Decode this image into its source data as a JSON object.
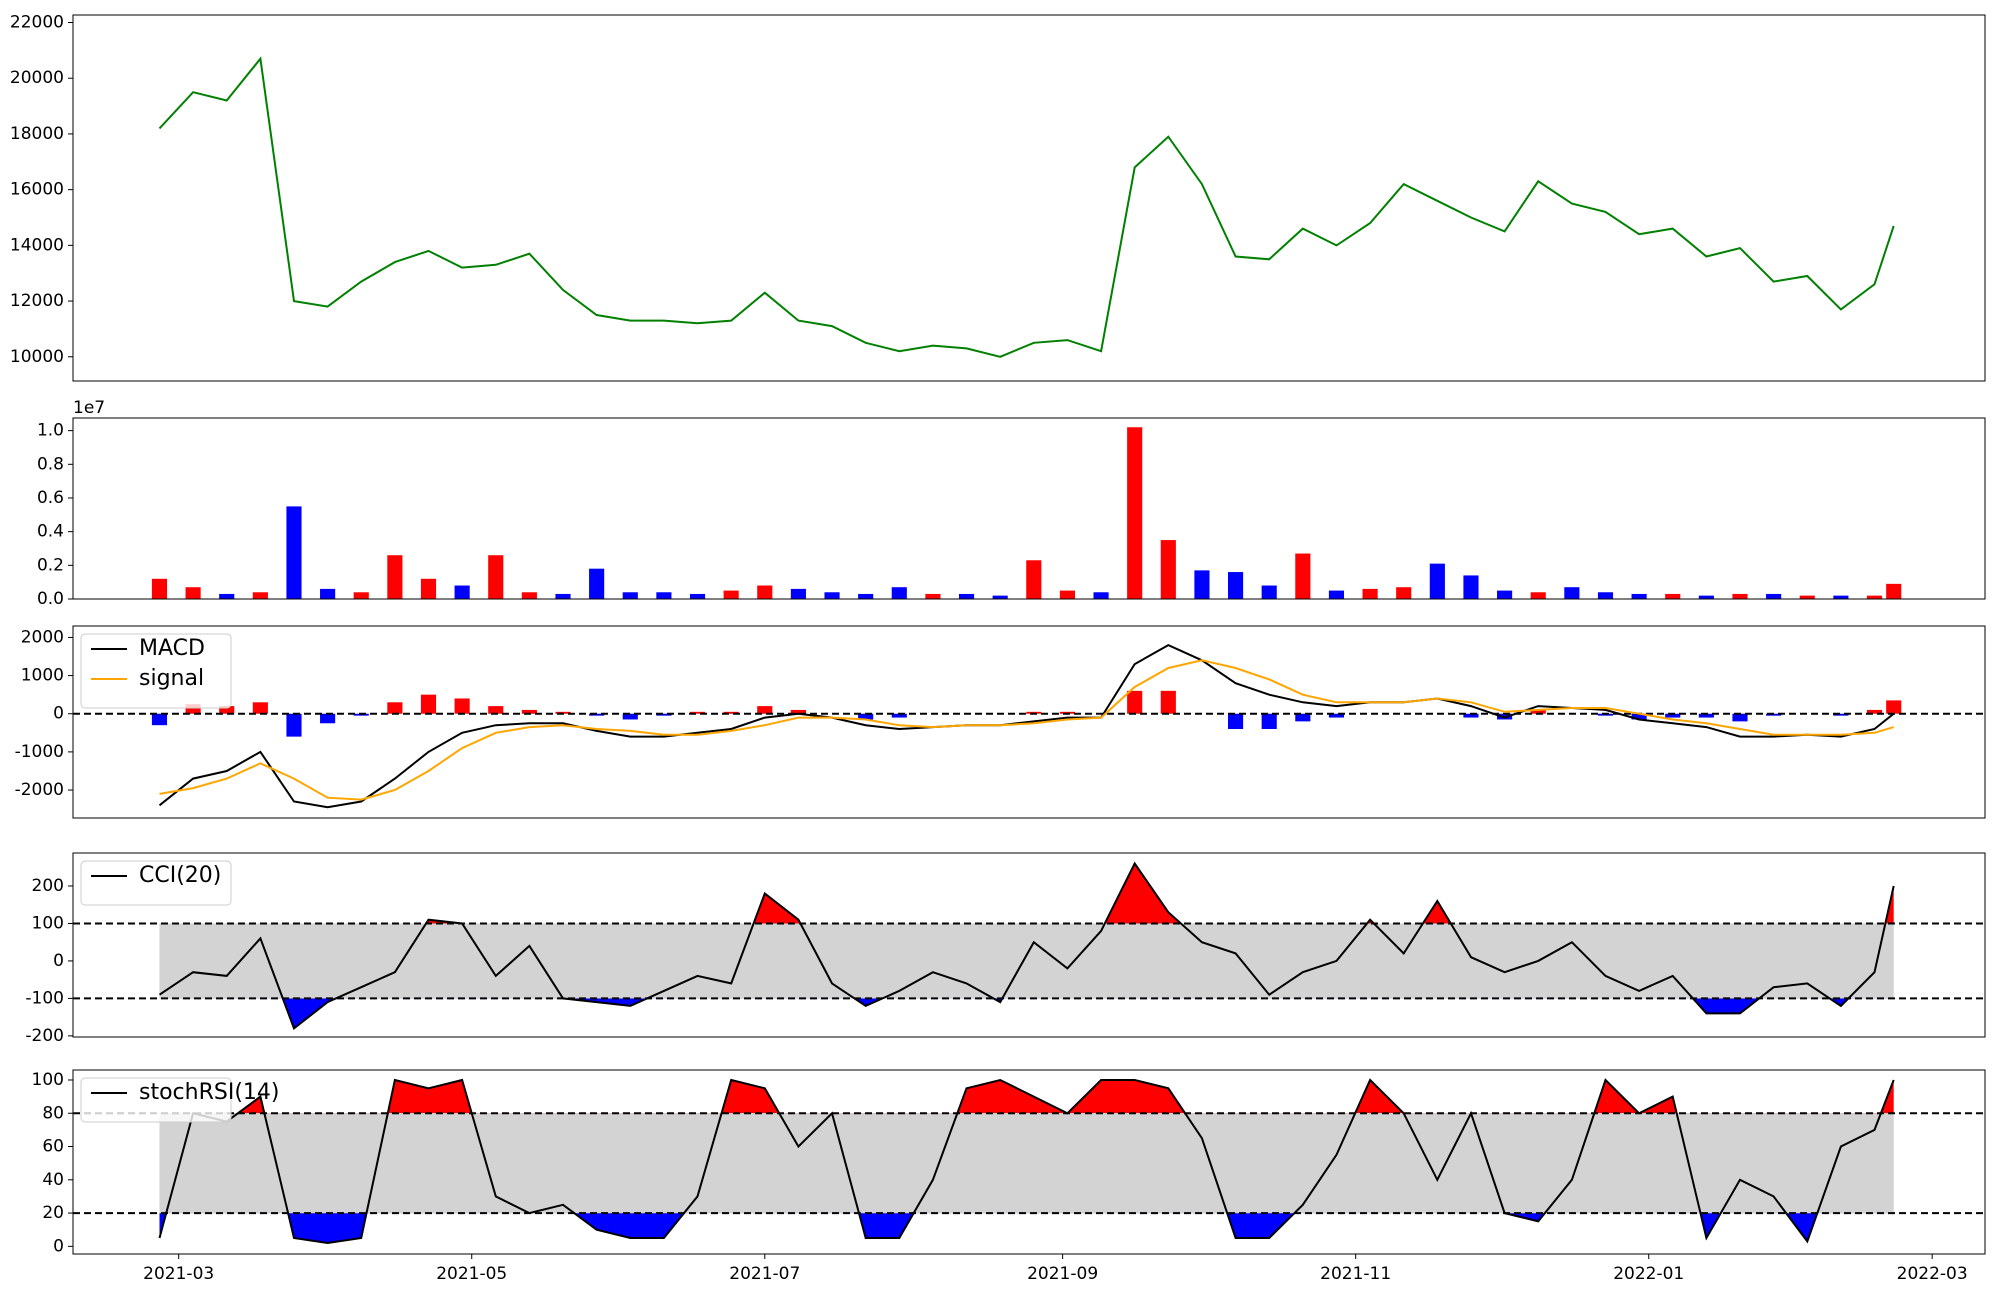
{
  "chart_data": [
    {
      "type": "line",
      "x": [
        -4,
        3,
        10,
        17,
        24,
        31,
        38,
        45,
        52,
        59,
        66,
        73,
        80,
        87,
        94,
        101,
        108,
        115,
        122,
        129,
        136,
        143,
        150,
        157,
        164,
        171,
        178,
        185,
        192,
        199,
        206,
        213,
        220,
        227,
        234,
        241,
        248,
        255,
        262,
        269,
        276,
        283,
        290,
        297,
        304,
        311,
        318,
        325,
        332,
        339,
        346,
        353,
        357
      ],
      "xlim": [
        -22,
        376
      ],
      "ylim": [
        9130,
        22270
      ],
      "yticks": [
        10000,
        12000,
        14000,
        16000,
        18000,
        20000,
        22000
      ],
      "series": [
        {
          "color": "green",
          "values": [
            18200,
            19500,
            19200,
            20700,
            12000,
            11800,
            12700,
            13400,
            13800,
            13200,
            13300,
            13700,
            12400,
            11500,
            11300,
            11300,
            11200,
            11300,
            12300,
            11300,
            11100,
            10500,
            10200,
            10400,
            10300,
            10000,
            10500,
            10600,
            10200,
            16800,
            17900,
            16200,
            13600,
            13500,
            14600,
            14000,
            14800,
            16200,
            15600,
            15000,
            14500,
            16300,
            15500,
            15200,
            14400,
            14600,
            13600,
            13900,
            12700,
            12900,
            11700,
            12600,
            14700
          ]
        }
      ]
    },
    {
      "type": "bar",
      "x": [
        -4,
        3,
        10,
        17,
        24,
        31,
        38,
        45,
        52,
        59,
        66,
        73,
        80,
        87,
        94,
        101,
        108,
        115,
        122,
        129,
        136,
        143,
        150,
        157,
        164,
        171,
        178,
        185,
        192,
        199,
        206,
        213,
        220,
        227,
        234,
        241,
        248,
        255,
        262,
        269,
        276,
        283,
        290,
        297,
        304,
        311,
        318,
        325,
        332,
        339,
        346,
        353,
        357
      ],
      "xlim": [
        -22,
        376
      ],
      "ylim": [
        0,
        1.075
      ],
      "offset_label": "1e7",
      "yticks": [
        {
          "value": 0,
          "label": "0.0"
        },
        0.2,
        0.4,
        0.6,
        0.8,
        {
          "value": 1,
          "label": "1.0"
        }
      ],
      "values": [
        0.12,
        0.07,
        0.03,
        0.04,
        0.55,
        0.06,
        0.04,
        0.26,
        0.12,
        0.08,
        0.26,
        0.04,
        0.03,
        0.18,
        0.04,
        0.04,
        0.03,
        0.05,
        0.08,
        0.06,
        0.04,
        0.03,
        0.07,
        0.03,
        0.03,
        0.02,
        0.23,
        0.05,
        0.04,
        1.02,
        0.35,
        0.17,
        0.16,
        0.08,
        0.27,
        0.05,
        0.06,
        0.07,
        0.21,
        0.14,
        0.05,
        0.04,
        0.07,
        0.04,
        0.03,
        0.03,
        0.02,
        0.03,
        0.03,
        0.02,
        0.02,
        0.02,
        0.09
      ],
      "colors": [
        "red",
        "red",
        "blue",
        "red",
        "blue",
        "blue",
        "red",
        "red",
        "red",
        "blue",
        "red",
        "red",
        "blue",
        "blue",
        "blue",
        "blue",
        "blue",
        "red",
        "red",
        "blue",
        "blue",
        "blue",
        "blue",
        "red",
        "blue",
        "blue",
        "red",
        "red",
        "blue",
        "red",
        "red",
        "blue",
        "blue",
        "blue",
        "red",
        "blue",
        "red",
        "red",
        "blue",
        "blue",
        "blue",
        "red",
        "blue",
        "blue",
        "blue",
        "red",
        "blue",
        "red",
        "blue",
        "red",
        "blue",
        "red",
        "red"
      ]
    },
    {
      "type": "macd",
      "x": [
        -4,
        3,
        10,
        17,
        24,
        31,
        38,
        45,
        52,
        59,
        66,
        73,
        80,
        87,
        94,
        101,
        108,
        115,
        122,
        129,
        136,
        143,
        150,
        157,
        164,
        171,
        178,
        185,
        192,
        199,
        206,
        213,
        220,
        227,
        234,
        241,
        248,
        255,
        262,
        269,
        276,
        283,
        290,
        297,
        304,
        311,
        318,
        325,
        332,
        339,
        346,
        353,
        357
      ],
      "xlim": [
        -22,
        376
      ],
      "ylim": [
        -2733,
        2300
      ],
      "yticks": [
        -2000,
        -1000,
        0,
        1000,
        2000
      ],
      "hlines": [
        0
      ],
      "legend": "upper left",
      "histogram": [
        -300,
        250,
        200,
        300,
        -600,
        -250,
        -50,
        300,
        500,
        400,
        200,
        100,
        50,
        -50,
        -150,
        -50,
        50,
        50,
        200,
        100,
        0,
        -150,
        -100,
        0,
        0,
        0,
        50,
        50,
        0,
        600,
        600,
        0,
        -400,
        -400,
        -200,
        -100,
        0,
        0,
        0,
        -100,
        -150,
        100,
        0,
        -50,
        -150,
        -100,
        -100,
        -200,
        -50,
        0,
        -50,
        100,
        350
      ],
      "hist_colors": [
        "red",
        "blue"
      ],
      "series": [
        {
          "name": "MACD",
          "color": "black",
          "values": [
            -2400,
            -1700,
            -1500,
            -1000,
            -2300,
            -2450,
            -2300,
            -1700,
            -1000,
            -500,
            -300,
            -250,
            -250,
            -450,
            -600,
            -600,
            -500,
            -400,
            -100,
            0,
            -100,
            -300,
            -400,
            -350,
            -300,
            -300,
            -200,
            -100,
            -100,
            1300,
            1800,
            1400,
            800,
            500,
            300,
            200,
            300,
            300,
            400,
            200,
            -100,
            200,
            150,
            100,
            -150,
            -250,
            -350,
            -600,
            -600,
            -550,
            -600,
            -400,
            0
          ]
        },
        {
          "name": "signal",
          "color": "orange",
          "values": [
            -2100,
            -1950,
            -1700,
            -1300,
            -1700,
            -2200,
            -2250,
            -2000,
            -1500,
            -900,
            -500,
            -350,
            -300,
            -400,
            -450,
            -550,
            -550,
            -450,
            -300,
            -100,
            -100,
            -150,
            -300,
            -350,
            -300,
            -300,
            -250,
            -150,
            -100,
            700,
            1200,
            1400,
            1200,
            900,
            500,
            300,
            300,
            300,
            400,
            300,
            50,
            100,
            150,
            150,
            0,
            -150,
            -250,
            -400,
            -550,
            -550,
            -550,
            -500,
            -350
          ]
        }
      ]
    },
    {
      "type": "oscillator",
      "x": [
        -4,
        3,
        10,
        17,
        24,
        31,
        38,
        45,
        52,
        59,
        66,
        73,
        80,
        87,
        94,
        101,
        108,
        115,
        122,
        129,
        136,
        143,
        150,
        157,
        164,
        171,
        178,
        185,
        192,
        199,
        206,
        213,
        220,
        227,
        234,
        241,
        248,
        255,
        262,
        269,
        276,
        283,
        290,
        297,
        304,
        311,
        318,
        325,
        332,
        339,
        346,
        353,
        357
      ],
      "xlim": [
        -22,
        376
      ],
      "ylim": [
        -203,
        288
      ],
      "yticks": [
        -200,
        -100,
        0,
        100,
        200
      ],
      "bands": [
        -100,
        100
      ],
      "legend": "upper left",
      "band_color": "lightgray",
      "high_color": "red",
      "low_color": "blue",
      "series": [
        {
          "name": "CCI(20)",
          "color": "black",
          "values": [
            -90,
            -30,
            -40,
            60,
            -180,
            -110,
            -70,
            -30,
            110,
            100,
            -40,
            40,
            -100,
            -110,
            -120,
            -80,
            -40,
            -60,
            180,
            110,
            -60,
            -120,
            -80,
            -30,
            -60,
            -110,
            50,
            -20,
            80,
            260,
            130,
            50,
            20,
            -90,
            -30,
            0,
            110,
            20,
            160,
            10,
            -30,
            0,
            50,
            -40,
            -80,
            -40,
            -140,
            -140,
            -70,
            -60,
            -120,
            -30,
            200
          ]
        }
      ]
    },
    {
      "type": "oscillator",
      "x": [
        -4,
        3,
        10,
        17,
        24,
        31,
        38,
        45,
        52,
        59,
        66,
        73,
        80,
        87,
        94,
        101,
        108,
        115,
        122,
        129,
        136,
        143,
        150,
        157,
        164,
        171,
        178,
        185,
        192,
        199,
        206,
        213,
        220,
        227,
        234,
        241,
        248,
        255,
        262,
        269,
        276,
        283,
        290,
        297,
        304,
        311,
        318,
        325,
        332,
        339,
        346,
        353,
        357
      ],
      "xlim": [
        -22,
        376
      ],
      "ylim": [
        -4.6,
        106
      ],
      "yticks": [
        0,
        20,
        40,
        60,
        80,
        100
      ],
      "bands": [
        20,
        80
      ],
      "legend": "upper left",
      "band_color": "lightgray",
      "high_color": "red",
      "low_color": "blue",
      "xticks": [
        {
          "value": 0,
          "label": "2021-03"
        },
        {
          "value": 61,
          "label": "2021-05"
        },
        {
          "value": 122,
          "label": "2021-07"
        },
        {
          "value": 184,
          "label": "2021-09"
        },
        {
          "value": 245,
          "label": "2021-11"
        },
        {
          "value": 306,
          "label": "2022-01"
        },
        {
          "value": 365,
          "label": "2022-03"
        }
      ],
      "series": [
        {
          "name": "stochRSI(14)",
          "color": "black",
          "values": [
            5,
            80,
            75,
            90,
            5,
            2,
            5,
            100,
            95,
            100,
            30,
            20,
            25,
            10,
            5,
            5,
            30,
            100,
            95,
            60,
            80,
            5,
            5,
            40,
            95,
            100,
            90,
            80,
            100,
            100,
            95,
            65,
            5,
            5,
            25,
            55,
            100,
            80,
            40,
            80,
            20,
            15,
            40,
            100,
            80,
            90,
            5,
            40,
            30,
            3,
            60,
            70,
            100
          ]
        }
      ]
    }
  ]
}
